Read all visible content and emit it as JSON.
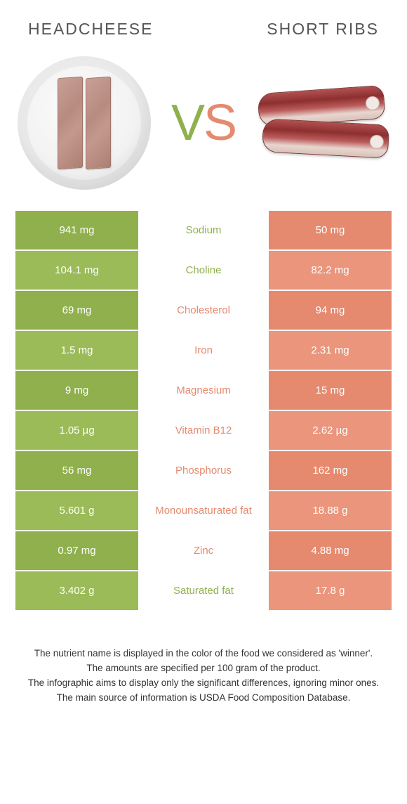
{
  "colors": {
    "left": "#8fb04d",
    "leftAlt": "#9bbb58",
    "right": "#e58a6f",
    "rightAlt": "#ea957c",
    "midText": "#666"
  },
  "header": {
    "left": "Headcheese",
    "right": "Short ribs"
  },
  "vs": {
    "v": "V",
    "s": "S"
  },
  "rows": [
    {
      "left": "941 mg",
      "mid": "Sodium",
      "right": "50 mg",
      "winner": "left"
    },
    {
      "left": "104.1 mg",
      "mid": "Choline",
      "right": "82.2 mg",
      "winner": "left"
    },
    {
      "left": "69 mg",
      "mid": "Cholesterol",
      "right": "94 mg",
      "winner": "right"
    },
    {
      "left": "1.5 mg",
      "mid": "Iron",
      "right": "2.31 mg",
      "winner": "right"
    },
    {
      "left": "9 mg",
      "mid": "Magnesium",
      "right": "15 mg",
      "winner": "right"
    },
    {
      "left": "1.05 µg",
      "mid": "Vitamin B12",
      "right": "2.62 µg",
      "winner": "right"
    },
    {
      "left": "56 mg",
      "mid": "Phosphorus",
      "right": "162 mg",
      "winner": "right"
    },
    {
      "left": "5.601 g",
      "mid": "Monounsaturated fat",
      "right": "18.88 g",
      "winner": "right"
    },
    {
      "left": "0.97 mg",
      "mid": "Zinc",
      "right": "4.88 mg",
      "winner": "right"
    },
    {
      "left": "3.402 g",
      "mid": "Saturated fat",
      "right": "17.8 g",
      "winner": "left"
    }
  ],
  "footer": {
    "l1": "The nutrient name is displayed in the color of the food we considered as 'winner'.",
    "l2": "The amounts are specified per 100 gram of the product.",
    "l3": "The infographic aims to display only the significant differences, ignoring minor ones.",
    "l4": "The main source of information is USDA Food Composition Database."
  }
}
